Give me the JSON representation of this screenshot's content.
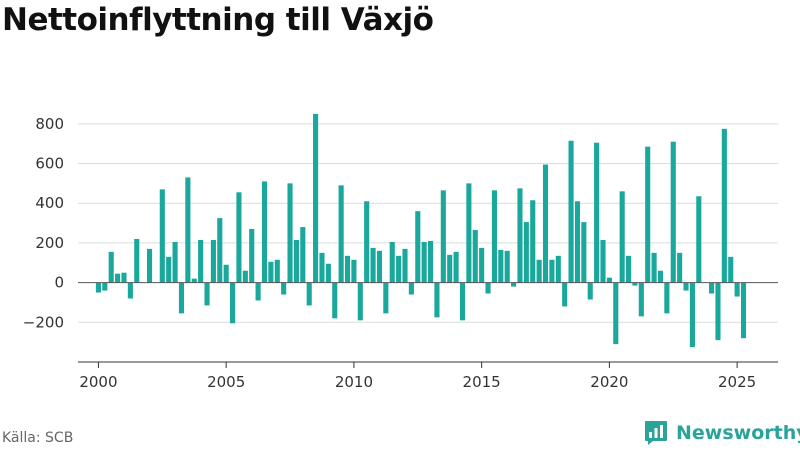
{
  "chart_data": {
    "type": "bar",
    "title": "Nettoinflyttning till Växjö",
    "xlabel": "",
    "ylabel": "",
    "xlim": [
      1999.2,
      2026.6
    ],
    "ylim": [
      -400,
      900
    ],
    "yticks": [
      -200,
      0,
      200,
      400,
      600,
      800
    ],
    "xticks": [
      2000,
      2005,
      2010,
      2015,
      2020,
      2025
    ],
    "grid": true,
    "color": "#1aa89c",
    "series": [
      {
        "x": [
          "2000 Q1",
          "2000 Q2",
          "2000 Q3",
          "2000 Q4",
          "2001 Q1",
          "2001 Q2",
          "2001 Q3",
          "2001 Q4",
          "2002 Q1",
          "2002 Q2",
          "2002 Q3",
          "2002 Q4",
          "2003 Q1",
          "2003 Q2",
          "2003 Q3",
          "2003 Q4",
          "2004 Q1",
          "2004 Q2",
          "2004 Q3",
          "2004 Q4",
          "2005 Q1",
          "2005 Q2",
          "2005 Q3",
          "2005 Q4",
          "2006 Q1",
          "2006 Q2",
          "2006 Q3",
          "2006 Q4",
          "2007 Q1",
          "2007 Q2",
          "2007 Q3",
          "2007 Q4",
          "2008 Q1",
          "2008 Q2",
          "2008 Q3",
          "2008 Q4",
          "2009 Q1",
          "2009 Q2",
          "2009 Q3",
          "2009 Q4",
          "2010 Q1",
          "2010 Q2",
          "2010 Q3",
          "2010 Q4",
          "2011 Q1",
          "2011 Q2",
          "2011 Q3",
          "2011 Q4",
          "2012 Q1",
          "2012 Q2",
          "2012 Q3",
          "2012 Q4",
          "2013 Q1",
          "2013 Q2",
          "2013 Q3",
          "2013 Q4",
          "2014 Q1",
          "2014 Q2",
          "2014 Q3",
          "2014 Q4",
          "2015 Q1",
          "2015 Q2",
          "2015 Q3",
          "2015 Q4",
          "2016 Q1",
          "2016 Q2",
          "2016 Q3",
          "2016 Q4",
          "2017 Q1",
          "2017 Q2",
          "2017 Q3",
          "2017 Q4",
          "2018 Q1",
          "2018 Q2",
          "2018 Q3",
          "2018 Q4",
          "2019 Q1",
          "2019 Q2",
          "2019 Q3",
          "2019 Q4",
          "2020 Q1",
          "2020 Q2",
          "2020 Q3",
          "2020 Q4",
          "2021 Q1",
          "2021 Q2",
          "2021 Q3",
          "2021 Q4",
          "2022 Q1",
          "2022 Q2",
          "2022 Q3",
          "2022 Q4",
          "2023 Q1",
          "2023 Q2",
          "2023 Q3",
          "2023 Q4",
          "2024 Q1",
          "2024 Q2",
          "2024 Q3",
          "2024 Q4",
          "2025 Q1",
          "2025 Q2"
        ],
        "values": [
          -50,
          -40,
          155,
          45,
          50,
          -80,
          220,
          0,
          170,
          0,
          470,
          130,
          205,
          -155,
          530,
          20,
          215,
          -115,
          215,
          325,
          90,
          -205,
          455,
          60,
          270,
          -90,
          510,
          105,
          115,
          -60,
          500,
          215,
          280,
          -115,
          850,
          150,
          95,
          -180,
          490,
          135,
          115,
          -190,
          410,
          175,
          160,
          -155,
          205,
          135,
          170,
          -60,
          360,
          205,
          210,
          -175,
          465,
          140,
          155,
          -190,
          500,
          265,
          175,
          -55,
          465,
          165,
          160,
          -20,
          475,
          305,
          415,
          115,
          595,
          115,
          135,
          -120,
          715,
          410,
          305,
          -85,
          705,
          215,
          25,
          -310,
          460,
          135,
          -15,
          -170,
          685,
          150,
          60,
          -155,
          710,
          150,
          -40,
          -325,
          435,
          0,
          -55,
          -290,
          775,
          130,
          -70,
          -280
        ]
      }
    ]
  },
  "source": "Källa: SCB",
  "brand": {
    "name": "Newsworthy",
    "icon": "newsworthy-logo-icon"
  }
}
